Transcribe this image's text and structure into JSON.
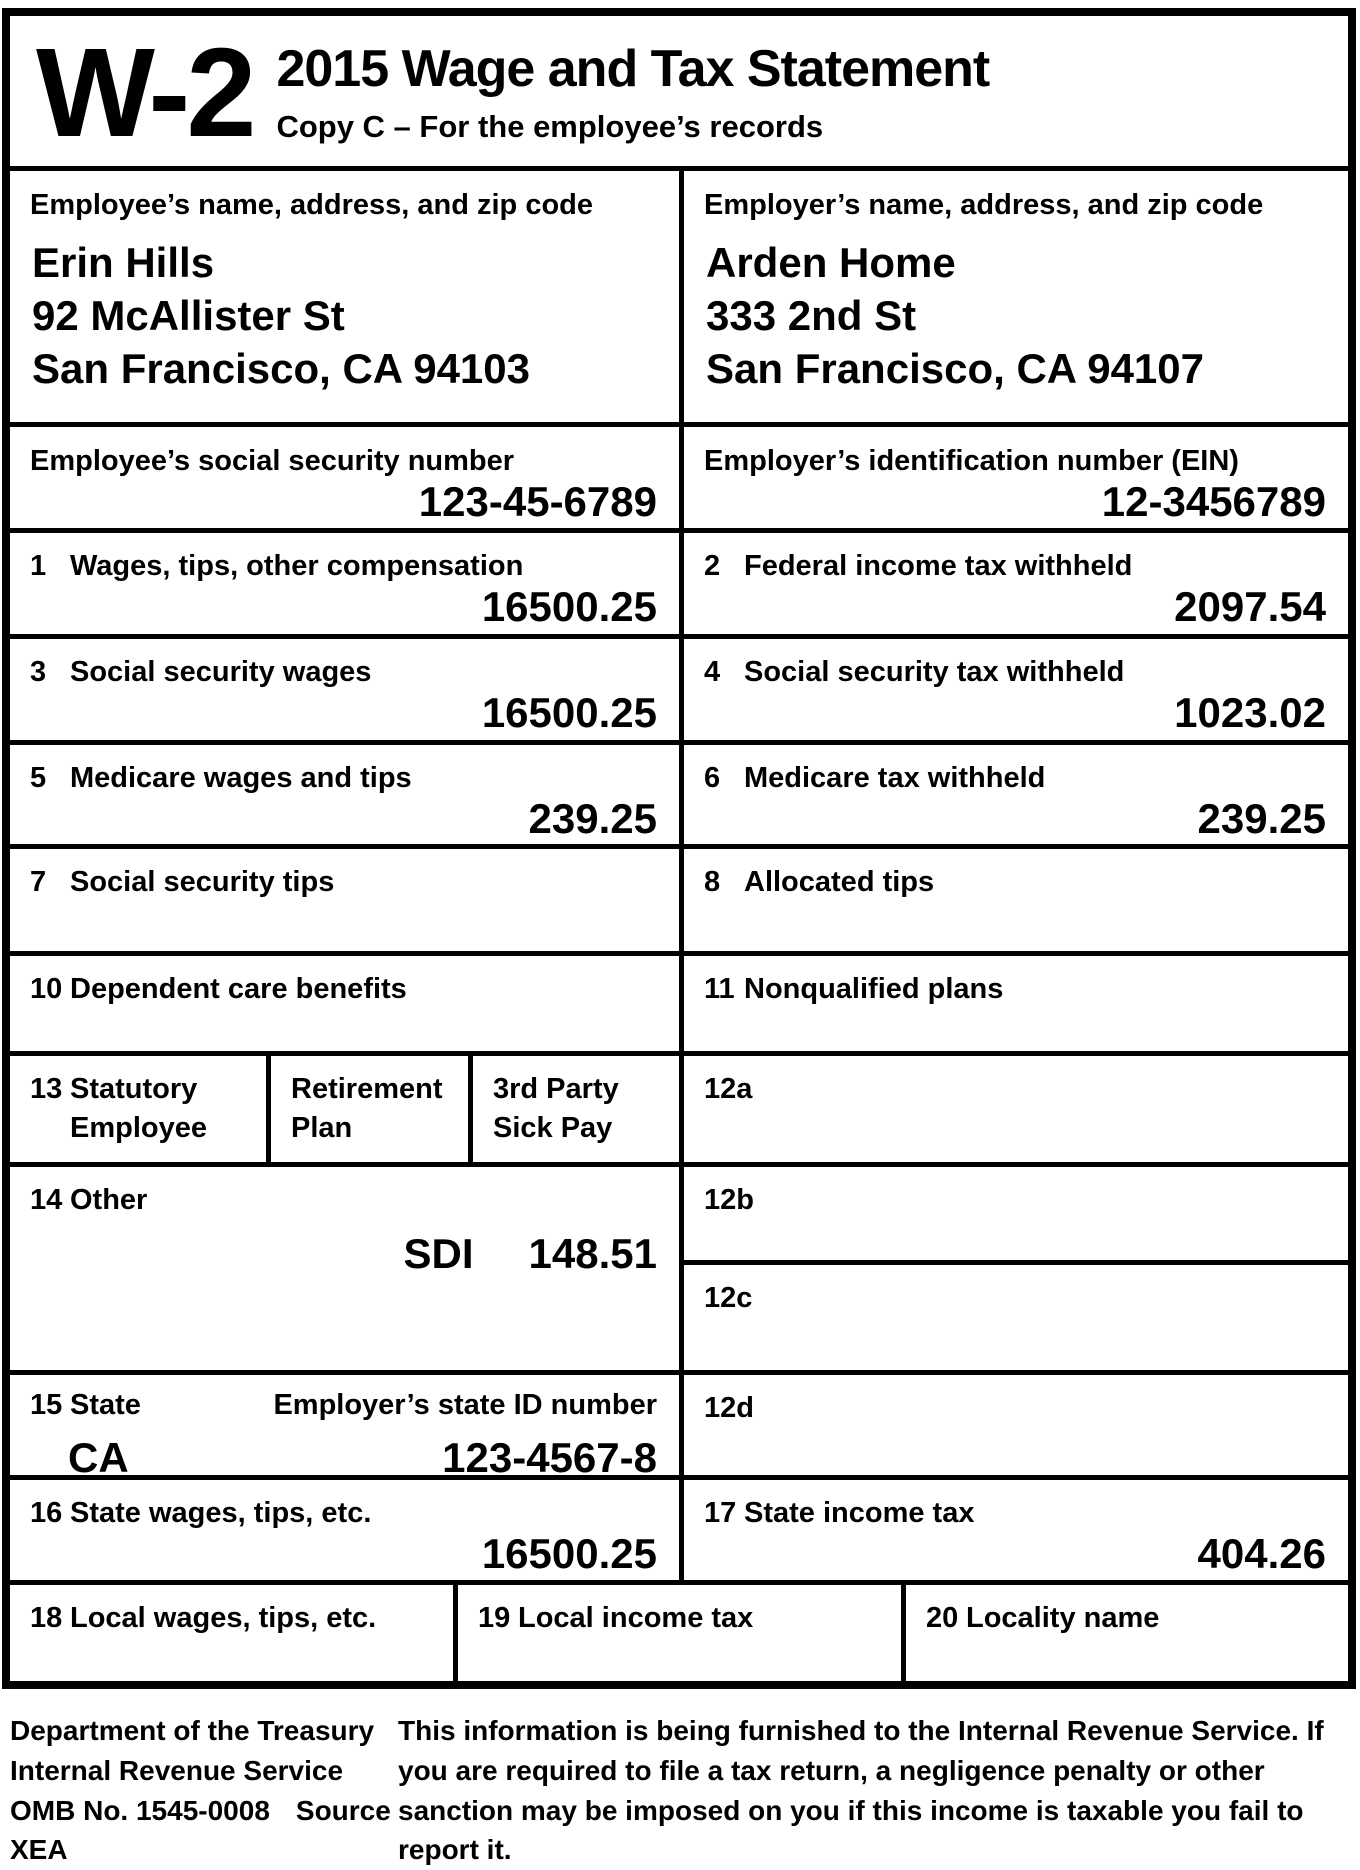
{
  "colors": {
    "ink": "#000000",
    "paper": "#ffffff"
  },
  "form": {
    "mark": "W-2",
    "title": "2015 Wage and Tax Statement",
    "copy": "Copy C – For the employee’s records"
  },
  "employee": {
    "label": "Employee’s name, address, and zip code",
    "name": "Erin Hills",
    "address1": "92 McAllister St",
    "address2": "San Francisco, CA 94103",
    "ssn_label": "Employee’s social security number",
    "ssn": "123-45-6789"
  },
  "employer": {
    "label": "Employer’s name, address, and zip code",
    "name": "Arden Home",
    "address1": "333 2nd St",
    "address2": "San Francisco, CA 94107",
    "ein_label": "Employer’s identification number (EIN)",
    "ein": "12-3456789"
  },
  "boxes": {
    "box1": {
      "num": "1",
      "label": "Wages, tips, other compensation",
      "value": "16500.25"
    },
    "box2": {
      "num": "2",
      "label": "Federal income tax withheld",
      "value": "2097.54"
    },
    "box3": {
      "num": "3",
      "label": "Social security wages",
      "value": "16500.25"
    },
    "box4": {
      "num": "4",
      "label": "Social security tax withheld",
      "value": "1023.02"
    },
    "box5": {
      "num": "5",
      "label": "Medicare wages and tips",
      "value": "239.25"
    },
    "box6": {
      "num": "6",
      "label": "Medicare tax withheld",
      "value": "239.25"
    },
    "box7": {
      "num": "7",
      "label": "Social security tips",
      "value": ""
    },
    "box8": {
      "num": "8",
      "label": "Allocated tips",
      "value": ""
    },
    "box10": {
      "num": "10",
      "label": "Dependent care benefits",
      "value": ""
    },
    "box11": {
      "num": "11",
      "label": "Nonqualified plans",
      "value": ""
    },
    "box12": {
      "a": "12a",
      "b": "12b",
      "c": "12c",
      "d": "12d"
    },
    "box13": {
      "num": "13",
      "col1_line1": "Statutory",
      "col1_line2": "Employee",
      "col2_line1": "Retirement",
      "col2_line2": "Plan",
      "col3_line1": "3rd Party",
      "col3_line2": "Sick Pay"
    },
    "box14": {
      "num": "14",
      "label": "Other",
      "item": "SDI",
      "amount": "148.51"
    },
    "box15": {
      "num": "15",
      "state_label": "State",
      "state_value": "CA",
      "id_label": "Employer’s state ID number",
      "id_value": "123-4567-8"
    },
    "box16": {
      "num": "16",
      "label": "State wages, tips, etc.",
      "value": "16500.25"
    },
    "box17": {
      "num": "17",
      "label": "State income tax",
      "value": "404.26"
    },
    "box18": {
      "num": "18",
      "label": "Local wages, tips, etc.",
      "value": ""
    },
    "box19": {
      "num": "19",
      "label": "Local income tax",
      "value": ""
    },
    "box20": {
      "num": "20",
      "label": "Locality name",
      "value": ""
    }
  },
  "footer": {
    "agency_line1": "Department of the Treasury",
    "agency_line2": "Internal Revenue Service",
    "omb": "OMB No. 1545-0008",
    "source": "Source XEA",
    "notice": "This information is being furnished to the Internal Revenue Service. If you are required to file a tax return, a negligence penalty or other sanction may be imposed on you if this income is taxable you fail to report it."
  }
}
